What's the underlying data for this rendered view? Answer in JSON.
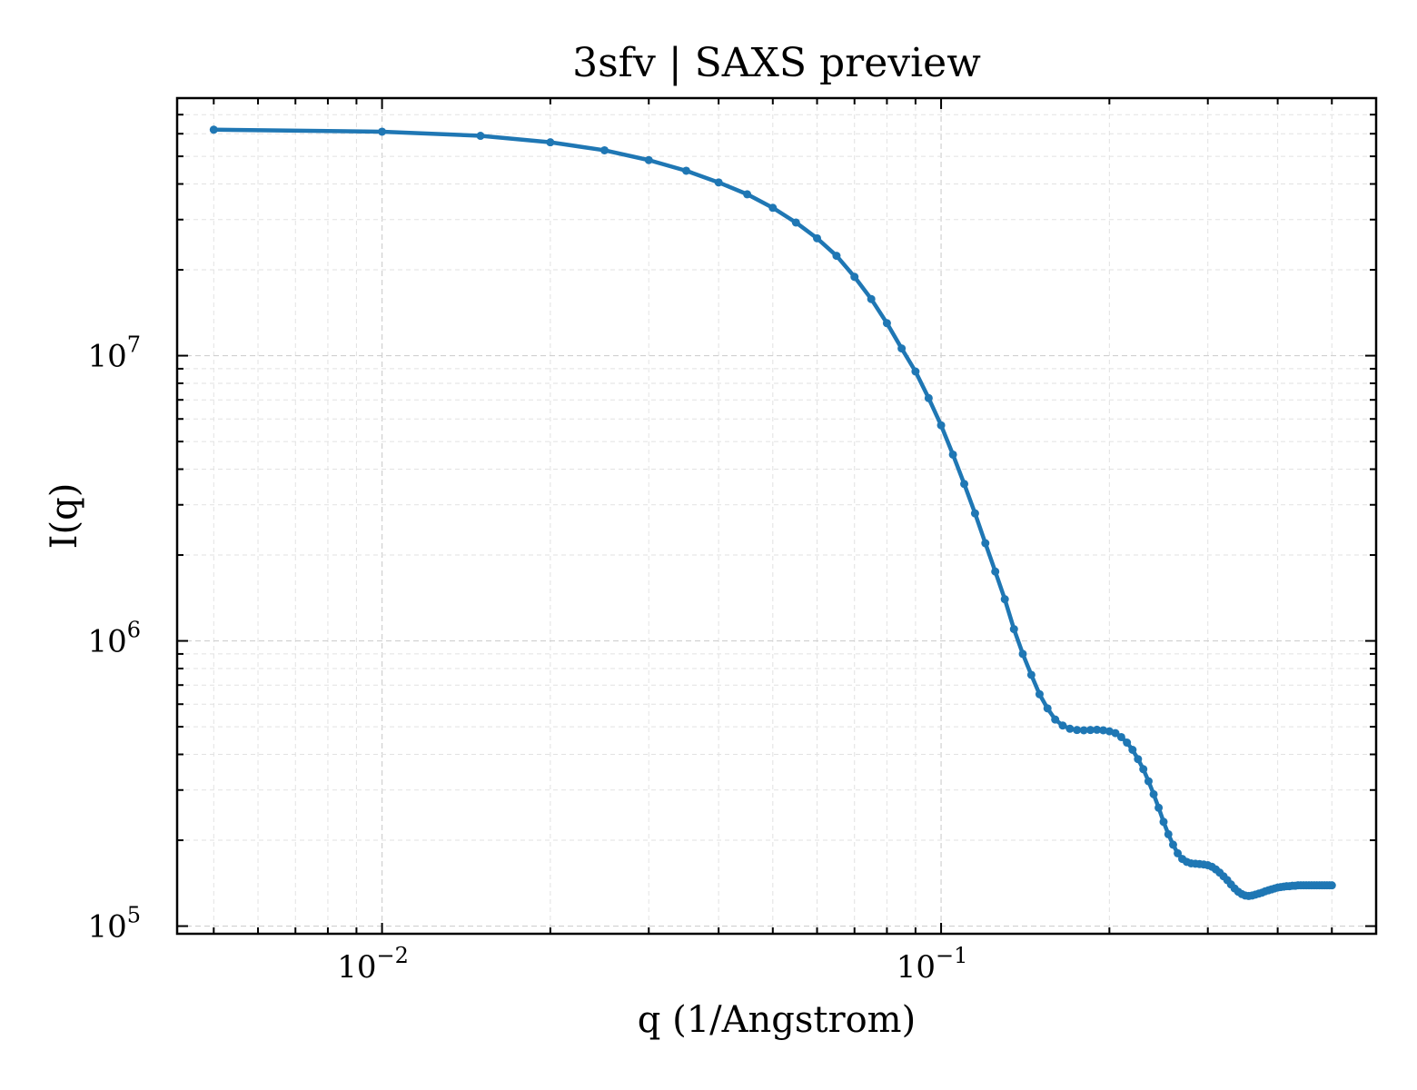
{
  "chart_data": {
    "type": "line",
    "title": "3sfv | SAXS preview",
    "xlabel": "q (1/Angstrom)",
    "ylabel": "I(q)",
    "x_scale": "log",
    "y_scale": "log",
    "xlim": [
      0.0043,
      0.6
    ],
    "ylim": [
      94000,
      80000000
    ],
    "x_ticks": [
      {
        "value": 0.01,
        "base": "10",
        "exp": "−2"
      },
      {
        "value": 0.1,
        "base": "10",
        "exp": "−1"
      }
    ],
    "y_ticks": [
      {
        "value": 100000,
        "base": "10",
        "exp": "5"
      },
      {
        "value": 1000000,
        "base": "10",
        "exp": "6"
      },
      {
        "value": 10000000,
        "base": "10",
        "exp": "7"
      }
    ],
    "grid": true,
    "legend": "none",
    "series": [
      {
        "color": "#1f77b4",
        "marker": "circle",
        "x": [
          0.005,
          0.01,
          0.015,
          0.02,
          0.025,
          0.03,
          0.035,
          0.04,
          0.045,
          0.05,
          0.055,
          0.06,
          0.065,
          0.07,
          0.075,
          0.08,
          0.085,
          0.09,
          0.095,
          0.1,
          0.105,
          0.11,
          0.115,
          0.12,
          0.125,
          0.13,
          0.135,
          0.14,
          0.145,
          0.15,
          0.155,
          0.16,
          0.165,
          0.17,
          0.175,
          0.18,
          0.185,
          0.19,
          0.195,
          0.2,
          0.205,
          0.21,
          0.215,
          0.22,
          0.225,
          0.23,
          0.235,
          0.24,
          0.245,
          0.25,
          0.255,
          0.26,
          0.265,
          0.27,
          0.275,
          0.28,
          0.285,
          0.29,
          0.295,
          0.3,
          0.305,
          0.31,
          0.315,
          0.32,
          0.325,
          0.33,
          0.335,
          0.34,
          0.345,
          0.35,
          0.355,
          0.36,
          0.365,
          0.37,
          0.375,
          0.38,
          0.385,
          0.39,
          0.395,
          0.4,
          0.405,
          0.41,
          0.415,
          0.42,
          0.425,
          0.43,
          0.435,
          0.44,
          0.445,
          0.45,
          0.455,
          0.46,
          0.465,
          0.47,
          0.475,
          0.48,
          0.485,
          0.49,
          0.495,
          0.5
        ],
        "y": [
          62000000,
          61000000,
          59000000,
          56000000,
          52500000,
          48500000,
          44500000,
          40500000,
          36800000,
          33000000,
          29300000,
          25800000,
          22400000,
          18900000,
          15800000,
          13000000,
          10600000,
          8800000,
          7100000,
          5700000,
          4500000,
          3550000,
          2800000,
          2200000,
          1750000,
          1400000,
          1100000,
          900000,
          760000,
          650000,
          580000,
          530000,
          505000,
          492000,
          487000,
          486000,
          487000,
          488000,
          486000,
          482000,
          475000,
          460000,
          440000,
          415000,
          385000,
          355000,
          322000,
          290000,
          260000,
          232000,
          210000,
          193000,
          180000,
          172000,
          168000,
          166000,
          165500,
          165000,
          164500,
          163500,
          161500,
          158000,
          154000,
          149500,
          145000,
          140000,
          135500,
          132000,
          129500,
          128000,
          127500,
          128000,
          129000,
          130000,
          131000,
          132500,
          133500,
          134500,
          135500,
          136500,
          137000,
          137500,
          138000,
          138000,
          138500,
          138500,
          139000,
          139000,
          139000,
          139000,
          139000,
          139000,
          139000,
          139000,
          139000,
          139000,
          139000,
          139000,
          139000,
          139000
        ]
      }
    ]
  }
}
